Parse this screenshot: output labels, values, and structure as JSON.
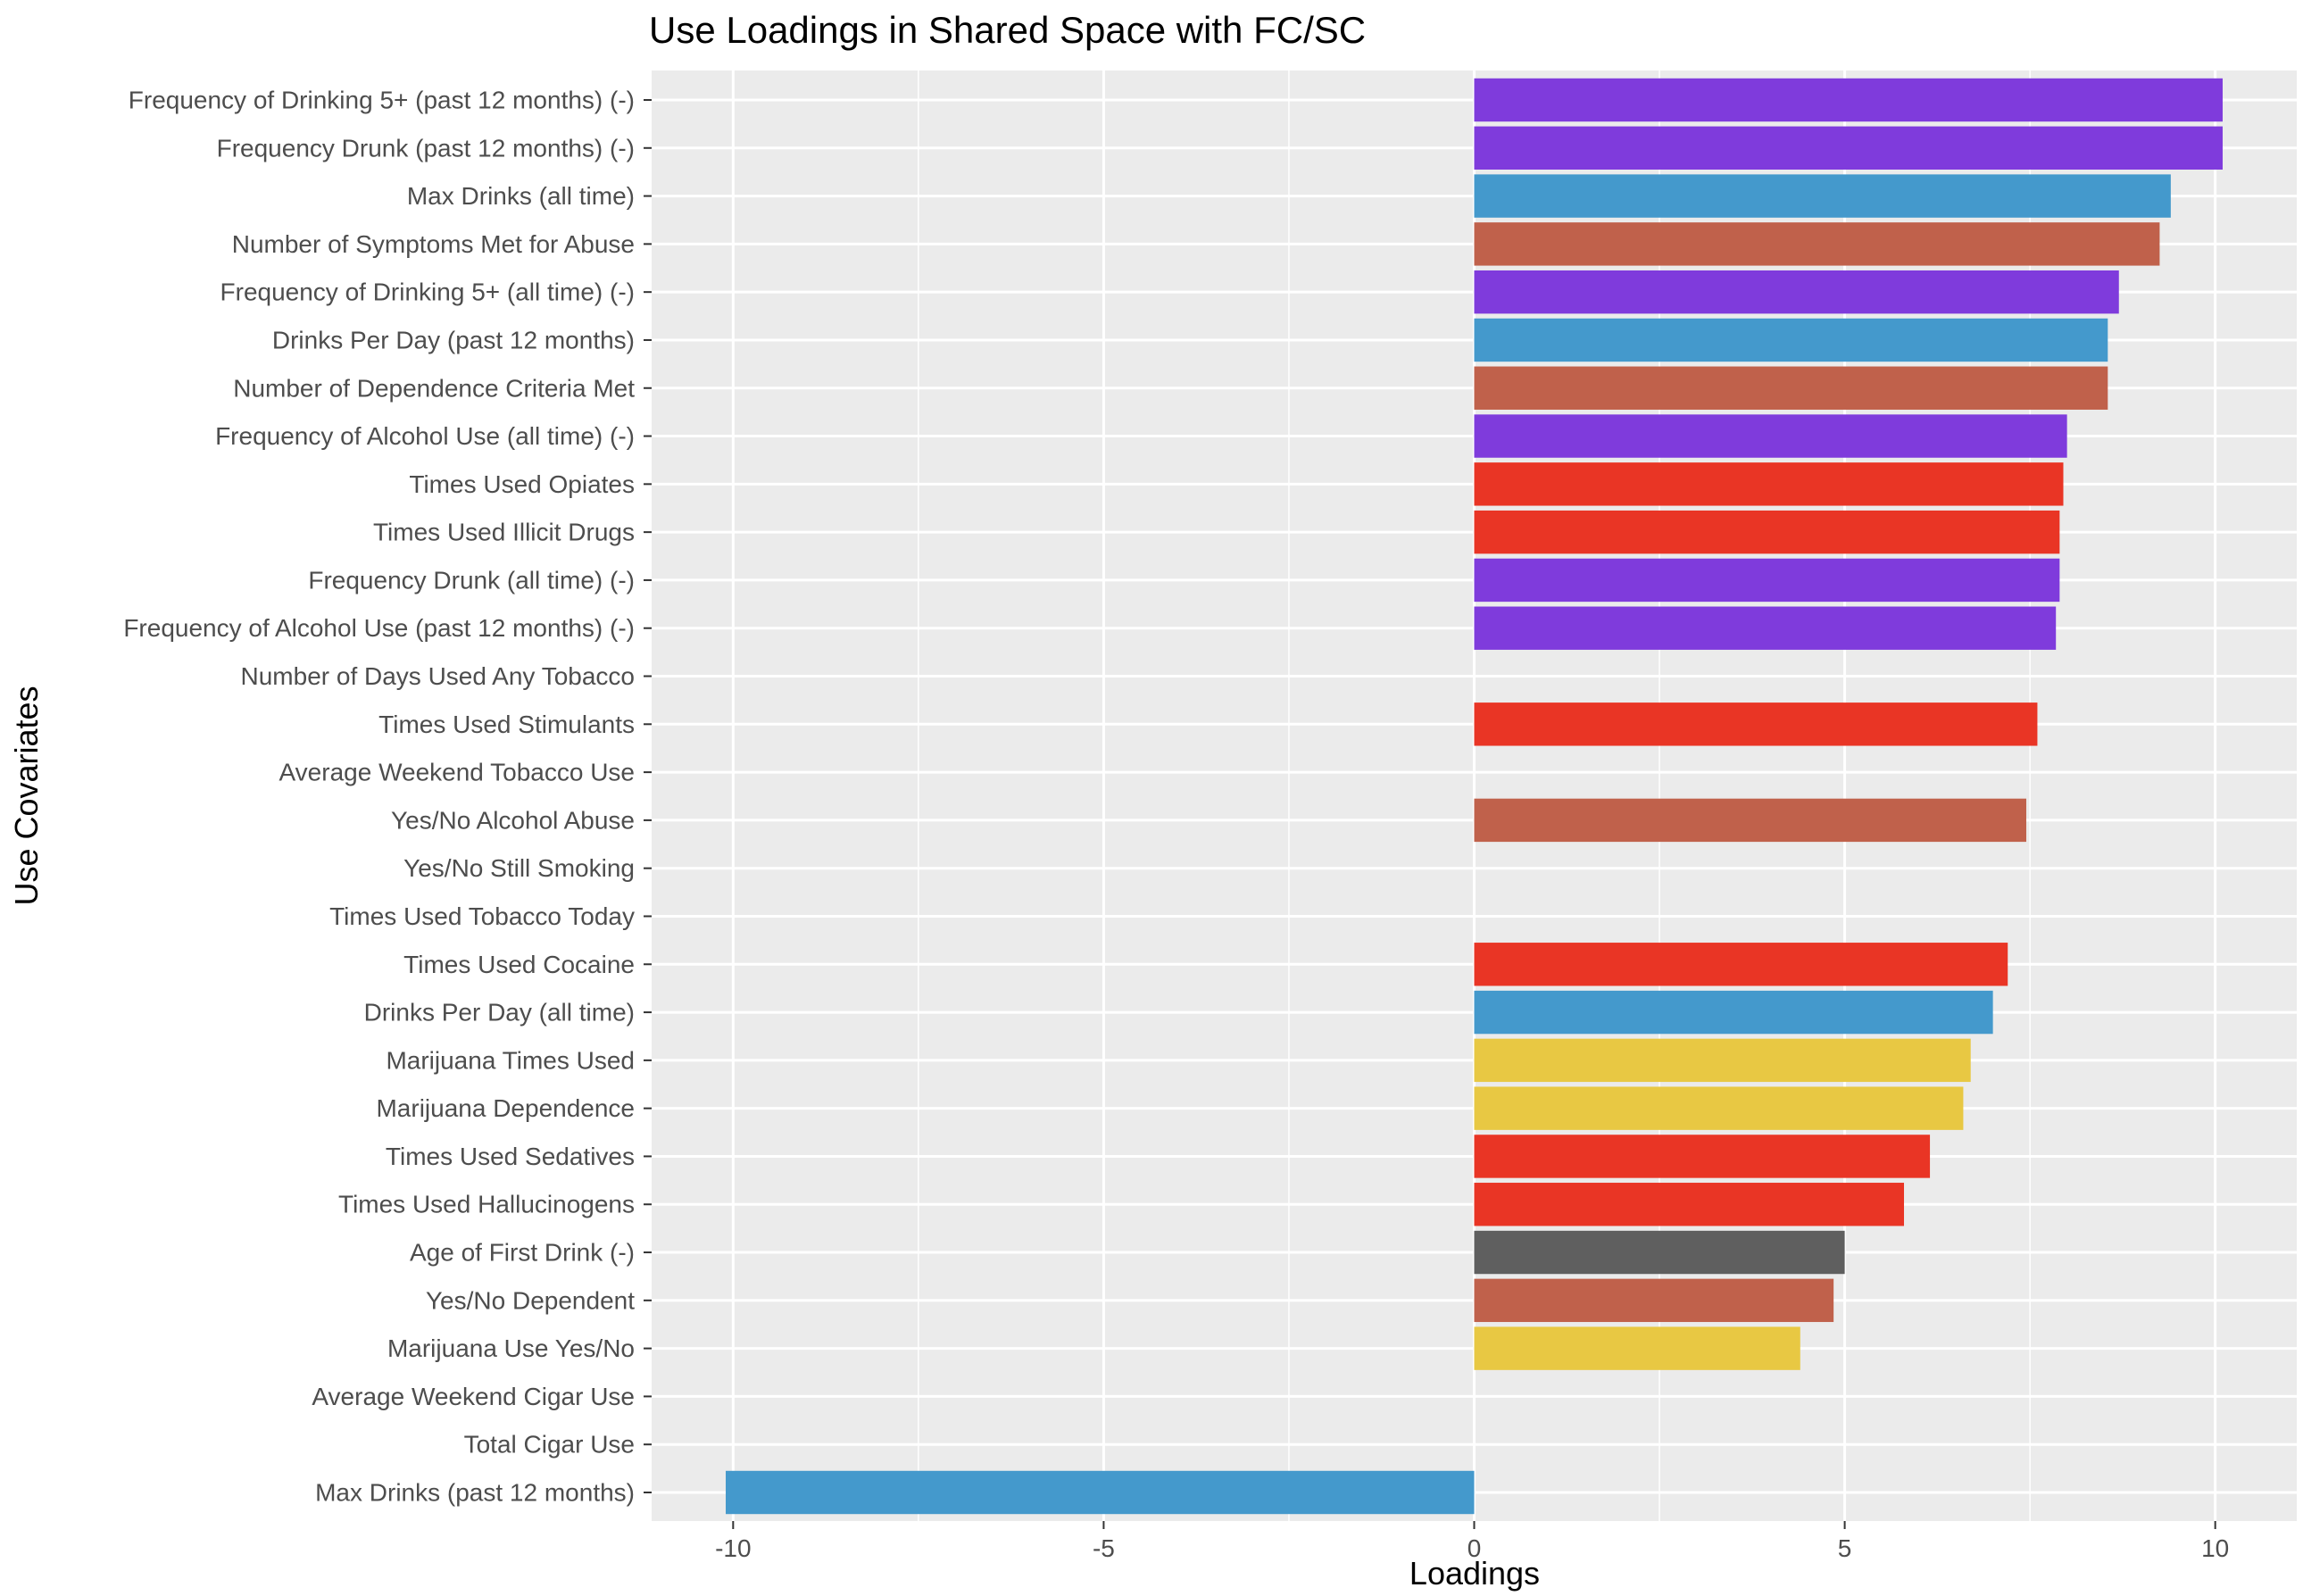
{
  "chart_data": {
    "type": "bar",
    "orientation": "horizontal",
    "title": "Use Loadings in Shared Space with FC/SC",
    "xlabel": "Loadings",
    "ylabel": "Use Covariates",
    "xlim": [
      -11.1,
      11.1
    ],
    "xticks": [
      -10,
      -5,
      0,
      5,
      10
    ],
    "grid": true,
    "legend": "none",
    "categories": [
      "Frequency of Drinking 5+ (past 12 months) (-)",
      "Frequency Drunk (past 12 months) (-)",
      "Max Drinks (all time)",
      "Number of Symptoms Met for Abuse",
      "Frequency of Drinking 5+ (all time) (-)",
      "Drinks Per Day (past 12 months)",
      "Number of Dependence Criteria Met",
      "Frequency of Alcohol Use (all time) (-)",
      "Times Used Opiates",
      "Times Used Illicit Drugs",
      "Frequency Drunk (all time) (-)",
      "Frequency of Alcohol Use (past 12 months) (-)",
      "Number of Days Used Any Tobacco",
      "Times Used Stimulants",
      "Average Weekend Tobacco Use",
      "Yes/No Alcohol Abuse",
      "Yes/No Still Smoking",
      "Times Used Tobacco Today",
      "Times Used Cocaine",
      "Drinks Per Day (all time)",
      "Marijuana Times Used",
      "Marijuana Dependence",
      "Times Used Sedatives",
      "Times Used Hallucinogens",
      "Age of First Drink (-)",
      "Yes/No Dependent",
      "Marijuana Use Yes/No",
      "Average Weekend Cigar Use",
      "Total Cigar Use",
      "Max Drinks (past 12 months)"
    ],
    "values": [
      10.1,
      10.1,
      9.4,
      9.25,
      8.7,
      8.55,
      8.55,
      8.0,
      7.95,
      7.9,
      7.9,
      7.85,
      0,
      7.6,
      0,
      7.45,
      0,
      0,
      7.2,
      7.0,
      6.7,
      6.6,
      6.15,
      5.8,
      5.0,
      4.85,
      4.4,
      0,
      0,
      -10.1
    ],
    "colors": [
      "#7f3bdc",
      "#7f3bdc",
      "#4499cc",
      "#c0614b",
      "#7f3bdc",
      "#4499cc",
      "#c0614b",
      "#7f3bdc",
      "#e93525",
      "#e93525",
      "#7f3bdc",
      "#7f3bdc",
      "#e93525",
      "#e93525",
      "#e93525",
      "#c0614b",
      "#e93525",
      "#e93525",
      "#e93525",
      "#4499cc",
      "#e8c843",
      "#e8c843",
      "#e93525",
      "#e93525",
      "#5f5f5f",
      "#c0614b",
      "#e8c843",
      "#e93525",
      "#e93525",
      "#4499cc"
    ]
  },
  "style": {
    "panel_background": "#ebebeb",
    "grid_color": "#ffffff",
    "tick_label_color": "#4d4d4d",
    "tick_color": "#333333"
  }
}
